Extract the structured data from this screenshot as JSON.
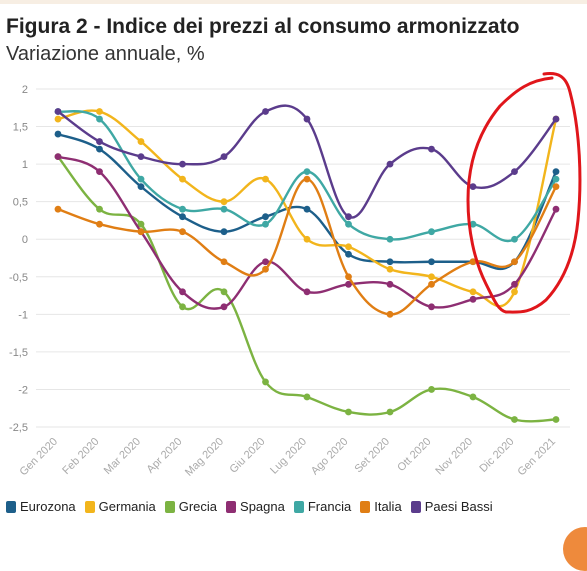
{
  "header": {
    "title": "Figura 2 - Indice dei prezzi al consumo armonizzato",
    "subtitle": "Variazione annuale, %"
  },
  "chart_data": {
    "type": "line",
    "title": "Figura 2 - Indice dei prezzi al consumo armonizzato",
    "subtitle": "Variazione annuale, %",
    "xlabel": "",
    "ylabel": "",
    "categories": [
      "Gen 2020",
      "Feb 2020",
      "Mar 2020",
      "Apr 2020",
      "Mag 2020",
      "Giu 2020",
      "Lug 2020",
      "Ago 2020",
      "Set 2020",
      "Ott 2020",
      "Nov 2020",
      "Dic 2020",
      "Gen 2021"
    ],
    "ylim": [
      -2.5,
      2
    ],
    "yticks": [
      2,
      1.5,
      1,
      0.5,
      0,
      -0.5,
      -1,
      -1.5,
      -2,
      -2.5
    ],
    "ytick_labels": [
      "2",
      "1,5",
      "1",
      "0,5",
      "0",
      "-0,5",
      "-1",
      "-1,5",
      "-2",
      "-2,5"
    ],
    "grid": true,
    "legend_position": "bottom",
    "series": [
      {
        "name": "Eurozona",
        "color": "#1d5f8a",
        "values": [
          1.4,
          1.2,
          0.7,
          0.3,
          0.1,
          0.3,
          0.4,
          -0.2,
          -0.3,
          -0.3,
          -0.3,
          -0.3,
          0.9
        ]
      },
      {
        "name": "Germania",
        "color": "#f2b51c",
        "values": [
          1.6,
          1.7,
          1.3,
          0.8,
          0.5,
          0.8,
          0.0,
          -0.1,
          -0.4,
          -0.5,
          -0.7,
          -0.7,
          1.6
        ]
      },
      {
        "name": "Grecia",
        "color": "#7cb342",
        "values": [
          1.1,
          0.4,
          0.2,
          -0.9,
          -0.7,
          -1.9,
          -2.1,
          -2.3,
          -2.3,
          -2.0,
          -2.1,
          -2.4,
          -2.4
        ]
      },
      {
        "name": "Spagna",
        "color": "#8e2e72",
        "values": [
          1.1,
          0.9,
          0.1,
          -0.7,
          -0.9,
          -0.3,
          -0.7,
          -0.6,
          -0.6,
          -0.9,
          -0.8,
          -0.6,
          0.4
        ]
      },
      {
        "name": "Francia",
        "color": "#3fa8a4",
        "values": [
          1.7,
          1.6,
          0.8,
          0.4,
          0.4,
          0.2,
          0.9,
          0.2,
          0.0,
          0.1,
          0.2,
          0.0,
          0.8
        ]
      },
      {
        "name": "Italia",
        "color": "#e07e14",
        "values": [
          0.4,
          0.2,
          0.1,
          0.1,
          -0.3,
          -0.4,
          0.8,
          -0.5,
          -1.0,
          -0.6,
          -0.3,
          -0.3,
          0.7
        ]
      },
      {
        "name": "Paesi Bassi",
        "color": "#5b3c8c",
        "values": [
          1.7,
          1.3,
          1.1,
          1.0,
          1.1,
          1.7,
          1.6,
          0.3,
          1.0,
          1.2,
          0.7,
          0.9,
          1.6
        ]
      }
    ],
    "annotation": {
      "type": "hand-drawn-circle",
      "color": "#e0161b",
      "around": [
        "Nov 2020",
        "Dic 2020",
        "Gen 2021"
      ]
    }
  }
}
